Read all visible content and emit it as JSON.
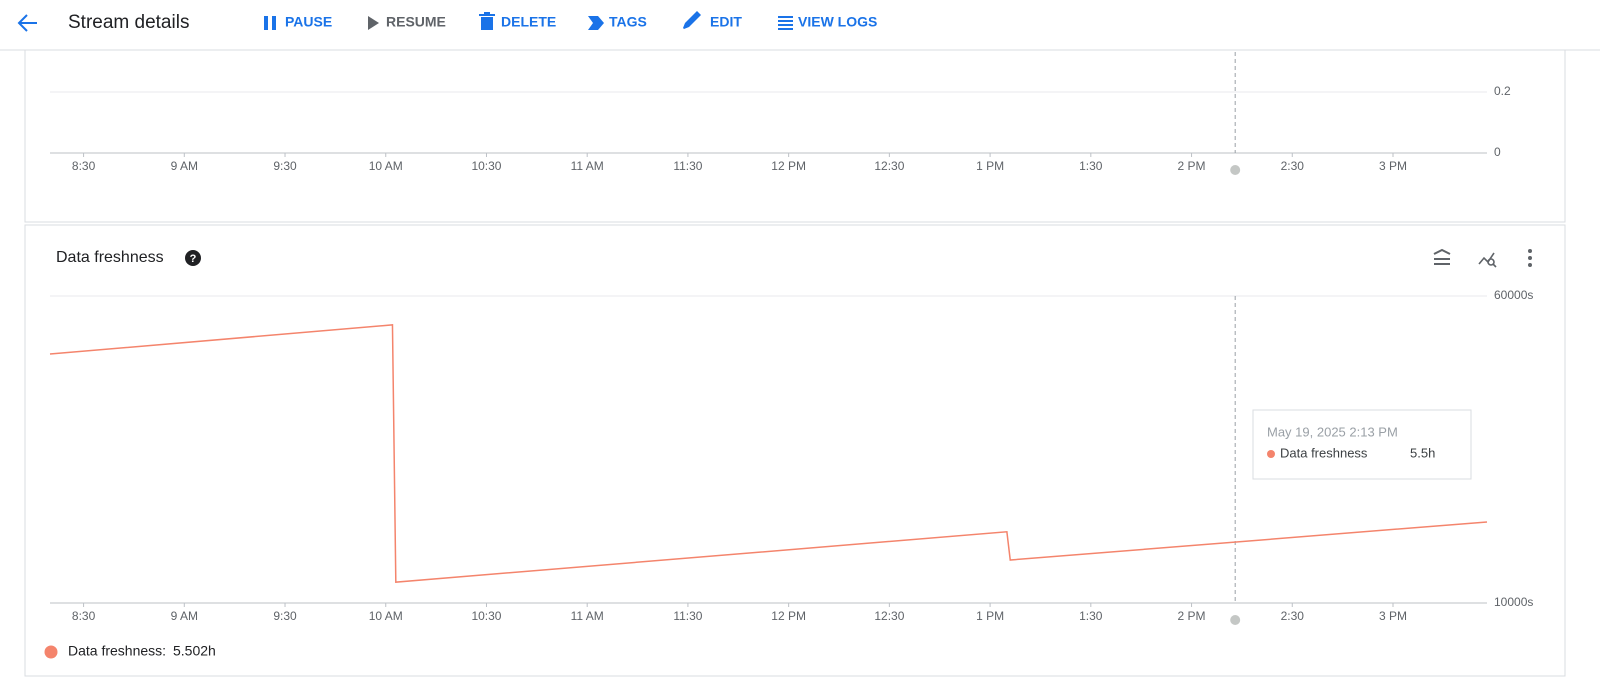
{
  "toolbar": {
    "title": "Stream details",
    "actions": [
      "PAUSE",
      "RESUME",
      "DELETE",
      "TAGS",
      "EDIT",
      "VIEW LOGS"
    ]
  },
  "chart_data": [
    {
      "type": "line",
      "xlim": [
        "08:20",
        "15:28"
      ],
      "xticks": [
        {
          "value": "08:30",
          "label": "8:30"
        },
        {
          "value": "09:00",
          "label": "9 AM"
        },
        {
          "value": "09:30",
          "label": "9:30"
        },
        {
          "value": "10:00",
          "label": "10 AM"
        },
        {
          "value": "10:30",
          "label": "10:30"
        },
        {
          "value": "11:00",
          "label": "11 AM"
        },
        {
          "value": "11:30",
          "label": "11:30"
        },
        {
          "value": "12:00",
          "label": "12 PM"
        },
        {
          "value": "12:30",
          "label": "12:30"
        },
        {
          "value": "13:00",
          "label": "1 PM"
        },
        {
          "value": "13:30",
          "label": "1:30"
        },
        {
          "value": "14:00",
          "label": "2 PM"
        },
        {
          "value": "14:30",
          "label": "2:30"
        },
        {
          "value": "15:00",
          "label": "3 PM"
        }
      ],
      "ylim": [
        0,
        0.2
      ],
      "yticks": [
        0,
        0.2
      ]
    },
    {
      "type": "line",
      "title": "Data freshness",
      "x": [
        "08:20",
        "10:02",
        "10:03",
        "13:05",
        "13:06",
        "15:28"
      ],
      "series": [
        {
          "name": "Data freshness",
          "color": "#f4846c",
          "values": [
            50550,
            55300,
            13400,
            21600,
            17000,
            23200
          ]
        }
      ],
      "xlim": [
        "08:20",
        "15:28"
      ],
      "xticks": [
        {
          "value": "08:30",
          "label": "8:30"
        },
        {
          "value": "09:00",
          "label": "9 AM"
        },
        {
          "value": "09:30",
          "label": "9:30"
        },
        {
          "value": "10:00",
          "label": "10 AM"
        },
        {
          "value": "10:30",
          "label": "10:30"
        },
        {
          "value": "11:00",
          "label": "11 AM"
        },
        {
          "value": "11:30",
          "label": "11:30"
        },
        {
          "value": "12:00",
          "label": "12 PM"
        },
        {
          "value": "12:30",
          "label": "12:30"
        },
        {
          "value": "13:00",
          "label": "1 PM"
        },
        {
          "value": "13:30",
          "label": "1:30"
        },
        {
          "value": "14:00",
          "label": "2 PM"
        },
        {
          "value": "14:30",
          "label": "2:30"
        },
        {
          "value": "15:00",
          "label": "3 PM"
        }
      ],
      "ylim": [
        10000,
        60000
      ],
      "yticks": [
        {
          "value": 10000,
          "label": "10000s"
        },
        {
          "value": 60000,
          "label": "60000s"
        }
      ],
      "tooltip": {
        "time": "May 19, 2025 2:13 PM",
        "value": "5.5h"
      },
      "legend": {
        "label": "Data freshness:",
        "value": "5.502h"
      }
    }
  ]
}
